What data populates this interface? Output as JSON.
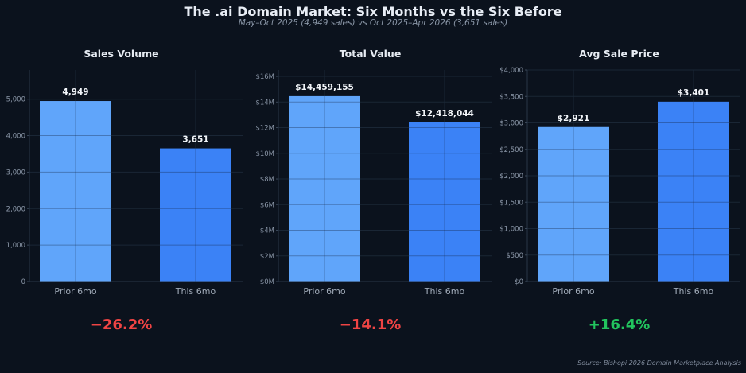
{
  "title": "The .ai Domain Market: Six Months vs the Six Before",
  "subtitle": "May–Oct 2025 (4,949 sales) vs Oct 2025–Apr 2026 (3,651 sales)",
  "source": "Source: Bishopi 2026 Domain Marketplace Analysis",
  "colors": {
    "prior": "#60a5fa",
    "current": "#3b82f6",
    "negative": "#ef4444",
    "positive": "#22c55e"
  },
  "chart_data": [
    {
      "type": "bar",
      "title": "Sales Volume",
      "categories": [
        "Prior 6mo",
        "This 6mo"
      ],
      "values": [
        4949,
        3651
      ],
      "data_labels": [
        "4,949",
        "3,651"
      ],
      "ylim": [
        0,
        5800
      ],
      "yticks": [
        0,
        1000,
        2000,
        3000,
        4000,
        5000
      ],
      "ytick_labels": [
        "0",
        "1,000",
        "2,000",
        "3,000",
        "4,000",
        "5,000"
      ],
      "change": "−26.2%",
      "change_sign": "negative",
      "grid": true
    },
    {
      "type": "bar",
      "title": "Total Value",
      "categories": [
        "Prior 6mo",
        "This 6mo"
      ],
      "values": [
        14459155,
        12418044
      ],
      "data_labels": [
        "$14,459,155",
        "$12,418,044"
      ],
      "ylim": [
        0,
        16500000
      ],
      "yticks": [
        0,
        2000000,
        4000000,
        6000000,
        8000000,
        10000000,
        12000000,
        14000000,
        16000000
      ],
      "ytick_labels": [
        "$0M",
        "$2M",
        "$4M",
        "$6M",
        "$8M",
        "$10M",
        "$12M",
        "$14M",
        "$16M"
      ],
      "change": "−14.1%",
      "change_sign": "negative",
      "grid": true
    },
    {
      "type": "bar",
      "title": "Avg Sale Price",
      "categories": [
        "Prior 6mo",
        "This 6mo"
      ],
      "values": [
        2921,
        3401
      ],
      "data_labels": [
        "$2,921",
        "$3,401"
      ],
      "ylim": [
        0,
        4000
      ],
      "yticks": [
        0,
        500,
        1000,
        1500,
        2000,
        2500,
        3000,
        3500,
        4000
      ],
      "ytick_labels": [
        "$0",
        "$500",
        "$1,000",
        "$1,500",
        "$2,000",
        "$2,500",
        "$3,000",
        "$3,500",
        "$4,000"
      ],
      "change": "+16.4%",
      "change_sign": "positive",
      "grid": true
    }
  ]
}
